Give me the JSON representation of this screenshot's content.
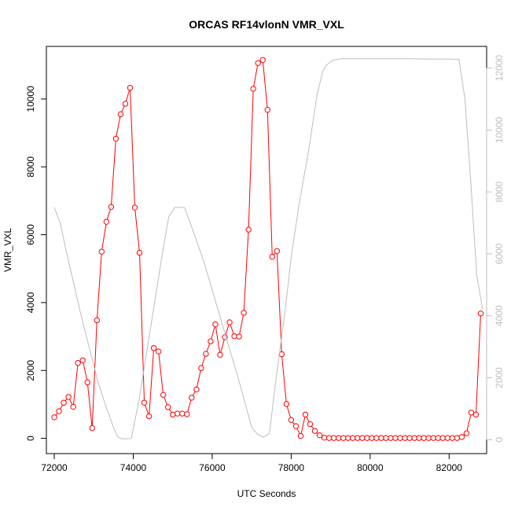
{
  "chart_data": {
    "type": "line",
    "title": "ORCAS RF14vlonN VMR_VXL",
    "xlabel": "UTC Seconds",
    "ylabel": "VMR_VXL",
    "y2label": "",
    "xlim": [
      71800,
      82950
    ],
    "ylim": [
      -450,
      11550
    ],
    "y2lim": [
      -450,
      12700
    ],
    "x_ticks": [
      72000,
      74000,
      76000,
      78000,
      80000,
      82000
    ],
    "y_ticks": [
      0,
      2000,
      4000,
      6000,
      8000,
      10000
    ],
    "y2_ticks": [
      0,
      2000,
      4000,
      6000,
      8000,
      10000,
      12000
    ],
    "grid": false,
    "legend": "none",
    "series": [
      {
        "axis": "left",
        "color": "#ff0000",
        "marker": "open-circle",
        "x": [
          72000,
          72120,
          72240,
          72360,
          72480,
          72600,
          72720,
          72840,
          72960,
          73080,
          73200,
          73320,
          73440,
          73560,
          73680,
          73800,
          73920,
          74040,
          74160,
          74280,
          74400,
          74520,
          74640,
          74760,
          74880,
          75000,
          75120,
          75240,
          75360,
          75480,
          75600,
          75720,
          75840,
          75960,
          76080,
          76200,
          76320,
          76440,
          76560,
          76680,
          76800,
          76920,
          77040,
          77160,
          77280,
          77400,
          77520,
          77640,
          77760,
          77880,
          78000,
          78120,
          78240,
          78360,
          78480,
          78600,
          78720,
          78840,
          78960,
          79080,
          79200,
          79320,
          79440,
          79560,
          79680,
          79800,
          79920,
          80040,
          80160,
          80280,
          80400,
          80520,
          80640,
          80760,
          80880,
          81000,
          81120,
          81240,
          81360,
          81480,
          81600,
          81720,
          81840,
          81960,
          82080,
          82200,
          82320,
          82440,
          82560,
          82680,
          82800
        ],
        "values": [
          620,
          800,
          1050,
          1220,
          930,
          2220,
          2300,
          1650,
          300,
          3480,
          5500,
          6380,
          6820,
          8830,
          9550,
          9860,
          10330,
          6800,
          5470,
          1050,
          650,
          2660,
          2560,
          1280,
          920,
          700,
          730,
          730,
          710,
          1200,
          1440,
          2070,
          2490,
          2860,
          3360,
          2460,
          2980,
          3420,
          3010,
          3000,
          3700,
          6150,
          10300,
          11060,
          11150,
          9680,
          5350,
          5520,
          2480,
          1010,
          540,
          360,
          70,
          700,
          420,
          220,
          90,
          20,
          10,
          10,
          10,
          10,
          10,
          10,
          10,
          10,
          10,
          10,
          10,
          10,
          10,
          10,
          10,
          10,
          10,
          10,
          10,
          10,
          10,
          10,
          10,
          10,
          10,
          10,
          10,
          10,
          40,
          150,
          760,
          700,
          3680
        ]
      },
      {
        "axis": "right",
        "color": "#bebebe",
        "marker": "none",
        "x": [
          72000,
          72150,
          72300,
          72500,
          72700,
          72900,
          73100,
          73300,
          73500,
          73600,
          73700,
          73800,
          73950,
          74150,
          74350,
          74550,
          74750,
          74900,
          75050,
          75200,
          75300,
          75500,
          75800,
          76100,
          76400,
          76700,
          77000,
          77150,
          77300,
          77450,
          77600,
          77850,
          78000,
          78200,
          78450,
          78650,
          78800,
          78900,
          79050,
          79250,
          79500,
          80000,
          80500,
          81000,
          81500,
          82000,
          82250,
          82400,
          82550,
          82700,
          82850
        ],
        "values": [
          7500,
          7000,
          6100,
          5000,
          3900,
          2900,
          1900,
          1100,
          400,
          100,
          30,
          30,
          40,
          1300,
          2900,
          4500,
          6100,
          7200,
          7500,
          7500,
          7500,
          6800,
          5700,
          4400,
          3100,
          1800,
          400,
          170,
          80,
          200,
          1800,
          4200,
          5900,
          7600,
          9400,
          11100,
          11900,
          12100,
          12250,
          12300,
          12300,
          12300,
          12300,
          12300,
          12290,
          12290,
          12280,
          11000,
          8300,
          5300,
          4200
        ]
      }
    ]
  }
}
